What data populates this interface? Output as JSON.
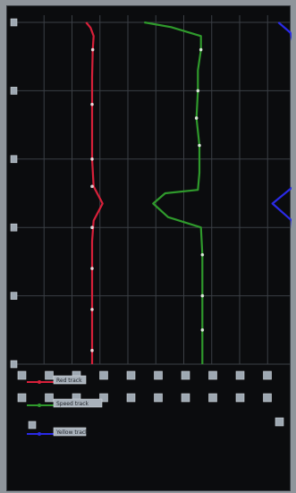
{
  "chart_data": {
    "type": "line",
    "orientation": "vertical-profile",
    "title": "",
    "grid": true,
    "legend_placement": "bottom-left",
    "colors": {
      "background": "#0b0c0e",
      "grid": "#3b3f45",
      "red": "#d8203a",
      "green": "#2f9a2c",
      "blue": "#2a2ae6"
    },
    "ylim": [
      0,
      5
    ],
    "y_ticks": [
      "0",
      "1",
      "2",
      "3",
      "4",
      "5"
    ],
    "xlim": [
      0,
      9
    ],
    "x_ticks_top_row": [
      "0",
      "1",
      "2",
      "3",
      "4",
      "5",
      "6",
      "7",
      "8",
      "9"
    ],
    "x_ticks_bottom_row": [
      "0",
      "1",
      "2",
      "3",
      "4",
      "5",
      "6",
      "7",
      "8",
      "9"
    ],
    "series": [
      {
        "name": "Red track",
        "color": "#d8203a",
        "points": [
          [
            2.35,
            5.0
          ],
          [
            2.5,
            4.92
          ],
          [
            2.6,
            4.8
          ],
          [
            2.57,
            4.6
          ],
          [
            2.55,
            4.2
          ],
          [
            2.55,
            3.8
          ],
          [
            2.55,
            3.4
          ],
          [
            2.55,
            3.0
          ],
          [
            2.6,
            2.6
          ],
          [
            2.9,
            2.35
          ],
          [
            2.6,
            2.1
          ],
          [
            2.55,
            1.8
          ],
          [
            2.55,
            1.4
          ],
          [
            2.55,
            1.0
          ],
          [
            2.55,
            0.6
          ],
          [
            2.55,
            0.3
          ],
          [
            2.55,
            0.0
          ]
        ],
        "markers": [
          [
            2.57,
            4.6
          ],
          [
            2.55,
            3.8
          ],
          [
            2.55,
            3.0
          ],
          [
            2.55,
            2.6
          ],
          [
            2.55,
            2.0
          ],
          [
            2.55,
            1.4
          ],
          [
            2.55,
            0.8
          ],
          [
            2.55,
            0.2
          ]
        ]
      },
      {
        "name": "Speed track",
        "color": "#2f9a2c",
        "points": [
          [
            4.3,
            5.0
          ],
          [
            5.2,
            4.93
          ],
          [
            6.2,
            4.8
          ],
          [
            6.2,
            4.6
          ],
          [
            6.1,
            4.3
          ],
          [
            6.1,
            4.0
          ],
          [
            6.05,
            3.6
          ],
          [
            6.15,
            3.2
          ],
          [
            6.15,
            2.8
          ],
          [
            6.1,
            2.55
          ],
          [
            5.0,
            2.5
          ],
          [
            4.6,
            2.35
          ],
          [
            5.1,
            2.15
          ],
          [
            6.2,
            2.0
          ],
          [
            6.25,
            1.6
          ],
          [
            6.25,
            1.0
          ],
          [
            6.25,
            0.5
          ],
          [
            6.25,
            0.0
          ]
        ],
        "markers": [
          [
            6.2,
            4.6
          ],
          [
            6.1,
            4.0
          ],
          [
            6.05,
            3.6
          ],
          [
            6.15,
            3.2
          ],
          [
            6.25,
            1.6
          ],
          [
            6.25,
            1.0
          ],
          [
            6.25,
            0.5
          ]
        ]
      },
      {
        "name": "Yellow track",
        "color": "#2a2ae6",
        "points": [
          [
            8.8,
            5.0
          ],
          [
            9.2,
            4.85
          ],
          [
            9.35,
            4.6
          ],
          [
            9.35,
            4.2
          ],
          [
            9.3,
            3.6
          ],
          [
            9.3,
            3.0
          ],
          [
            9.3,
            2.6
          ],
          [
            8.6,
            2.35
          ],
          [
            9.25,
            2.1
          ],
          [
            9.35,
            1.6
          ],
          [
            9.35,
            1.0
          ],
          [
            9.35,
            0.5
          ],
          [
            9.35,
            0.0
          ]
        ],
        "markers": [
          [
            9.35,
            4.6
          ],
          [
            9.3,
            3.6
          ],
          [
            9.3,
            3.0
          ],
          [
            9.35,
            1.6
          ],
          [
            9.35,
            1.0
          ],
          [
            9.35,
            0.5
          ]
        ]
      }
    ]
  }
}
